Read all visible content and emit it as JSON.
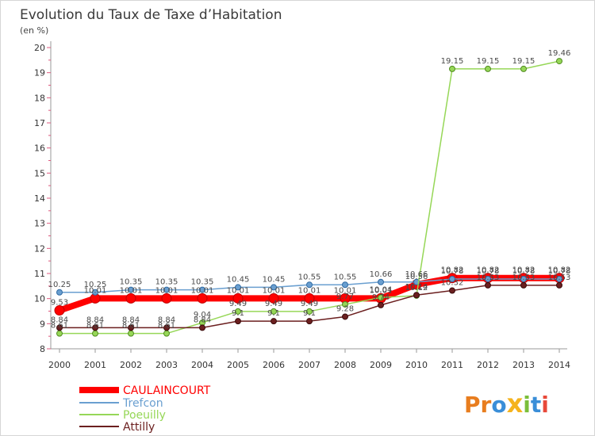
{
  "chart_data": {
    "type": "line",
    "title": "Evolution du Taux de Taxe d’Habitation",
    "ylabel": "(en %)",
    "xlabel": "",
    "x": [
      2000,
      2001,
      2002,
      2003,
      2004,
      2005,
      2006,
      2007,
      2008,
      2009,
      2010,
      2011,
      2012,
      2013,
      2014
    ],
    "ylim": [
      8,
      20
    ],
    "yticks": [
      8,
      9,
      10,
      11,
      12,
      13,
      14,
      15,
      16,
      17,
      18,
      19,
      20
    ],
    "grid": false,
    "legend_position": "bottom-left",
    "series": [
      {
        "name": "CAULAINCOURT",
        "color": "#ff0000",
        "values": [
          9.53,
          10.01,
          10.01,
          10.01,
          10.01,
          10.01,
          10.01,
          10.01,
          10.01,
          10.01,
          10.56,
          10.82,
          10.82,
          10.82,
          10.82
        ]
      },
      {
        "name": "Trefcon",
        "color": "#6a9fd0",
        "values": [
          10.25,
          10.25,
          10.35,
          10.35,
          10.35,
          10.45,
          10.45,
          10.55,
          10.55,
          10.66,
          10.66,
          10.78,
          10.78,
          10.78,
          10.78
        ]
      },
      {
        "name": "Poeuilly",
        "color": "#96d757",
        "values": [
          8.61,
          8.61,
          8.61,
          8.61,
          9.04,
          9.49,
          9.49,
          9.49,
          9.77,
          10.04,
          10.12,
          19.15,
          19.15,
          19.15,
          19.46
        ]
      },
      {
        "name": "Attilly",
        "color": "#6b1f1f",
        "values": [
          8.84,
          8.84,
          8.84,
          8.84,
          8.84,
          9.1,
          9.1,
          9.1,
          9.28,
          9.74,
          10.14,
          10.32,
          10.53,
          10.53,
          10.53
        ]
      }
    ]
  },
  "logo": {
    "text": "Proxiti",
    "letter_colors": [
      "#e87d1e",
      "#e87d1e",
      "#3a8ed8",
      "#f5b31d",
      "#7bbf3a",
      "#3a8ed8",
      "#e8493a"
    ]
  }
}
